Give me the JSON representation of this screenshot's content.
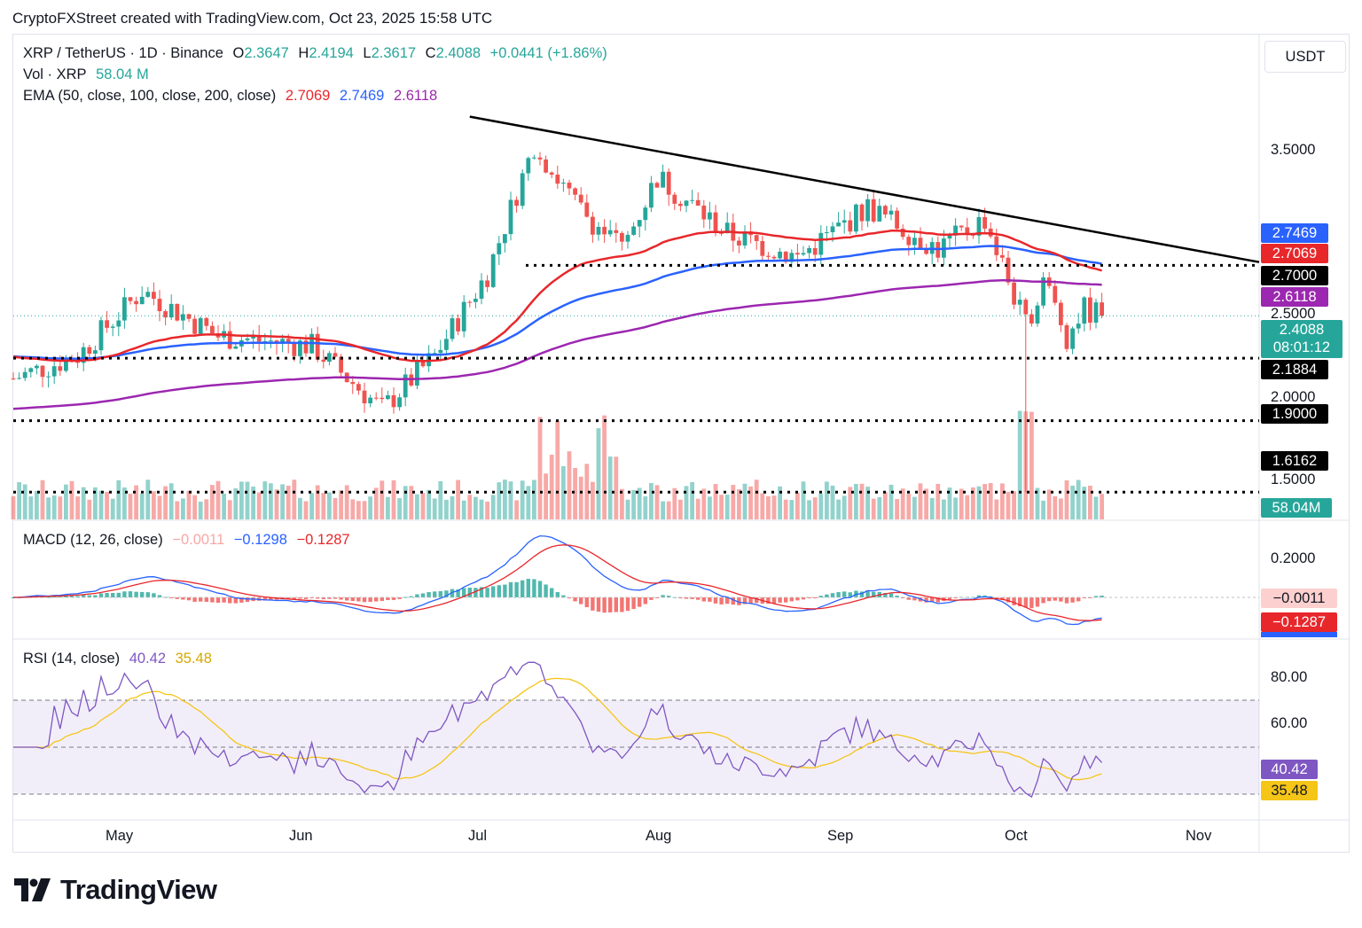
{
  "header": "CryptoFXStreet created with TradingView.com, Oct 23, 2025 15:58 UTC",
  "legend": {
    "symbol": "XRP / TetherUS · 1D · Binance",
    "o_label": "O",
    "o_val": "2.3647",
    "h_label": "H",
    "h_val": "2.4194",
    "l_label": "L",
    "l_val": "2.3617",
    "c_label": "C",
    "c_val": "2.4088",
    "change": "+0.0441 (+1.86%)",
    "vol_label": "Vol · XRP",
    "vol_val": "58.04 M",
    "ema_label": "EMA (50, close, 100, close, 200, close)",
    "ema50": "2.7069",
    "ema100": "2.7469",
    "ema200": "2.6118",
    "macd_label": "MACD (12, 26, close)",
    "macd_hist": "−0.0011",
    "macd_line": "−0.1298",
    "macd_signal": "−0.1287",
    "rsi_label": "RSI (14, close)",
    "rsi_val": "40.42",
    "rsi_ma": "35.48"
  },
  "currency": "USDT",
  "price_axis": [
    "3.5000",
    "2.5000",
    "2.0000",
    "1.5000"
  ],
  "macd_axis": [
    "0.2000"
  ],
  "rsi_axis": [
    "80.00",
    "60.00"
  ],
  "x_axis": [
    "May",
    "Jun",
    "Jul",
    "Aug",
    "Sep",
    "Oct",
    "Nov"
  ],
  "tags": {
    "ema100": "2.7469",
    "ema50": "2.7069",
    "level_270": "2.7000",
    "ema200": "2.6118",
    "last_price": "2.4088",
    "countdown": "08:01:12",
    "level_2188": "2.1884",
    "level_190": "1.9000",
    "level_1616": "1.6162",
    "volume": "58.04M",
    "macd_hist": "−0.0011",
    "macd_signal": "−0.1287",
    "rsi": "40.42",
    "rsi_ma": "35.48"
  },
  "colors": {
    "up": "#26a69a",
    "down": "#ef5350",
    "ema50": "#e8272b",
    "ema100": "#2962ff",
    "ema200": "#9c27b0",
    "rsi": "#7e57c2",
    "rsi_ma": "#f5c518",
    "trendline": "#000000"
  },
  "logo_text": "TradingView",
  "chart_data": {
    "type": "candlestick",
    "symbol": "XRP/USDT",
    "timeframe": "1D",
    "y_scale": "log",
    "horizontal_levels": [
      2.7,
      2.1884,
      1.9,
      1.6162
    ],
    "trendline": {
      "from": {
        "date": "2025-07-07",
        "price": 3.78
      },
      "to": {
        "date": "2025-11-05",
        "price": 2.72
      }
    },
    "closes_approx": [
      {
        "date": "2025-04-20",
        "close": 2.09
      },
      {
        "date": "2025-05-01",
        "close": 2.2
      },
      {
        "date": "2025-05-12",
        "close": 2.55
      },
      {
        "date": "2025-05-25",
        "close": 2.3
      },
      {
        "date": "2025-06-10",
        "close": 2.25
      },
      {
        "date": "2025-06-22",
        "close": 1.95
      },
      {
        "date": "2025-07-01",
        "close": 2.2
      },
      {
        "date": "2025-07-10",
        "close": 2.65
      },
      {
        "date": "2025-07-18",
        "close": 3.55
      },
      {
        "date": "2025-07-25",
        "close": 3.1
      },
      {
        "date": "2025-08-02",
        "close": 2.8
      },
      {
        "date": "2025-08-08",
        "close": 3.3
      },
      {
        "date": "2025-08-20",
        "close": 2.9
      },
      {
        "date": "2025-09-01",
        "close": 2.75
      },
      {
        "date": "2025-09-13",
        "close": 3.08
      },
      {
        "date": "2025-09-25",
        "close": 2.8
      },
      {
        "date": "2025-10-03",
        "close": 3.0
      },
      {
        "date": "2025-10-10",
        "close": 2.35
      },
      {
        "date": "2025-10-13",
        "close": 2.62
      },
      {
        "date": "2025-10-17",
        "close": 2.3
      },
      {
        "date": "2025-10-20",
        "close": 2.45
      },
      {
        "date": "2025-10-23",
        "close": 2.4088
      }
    ]
  }
}
